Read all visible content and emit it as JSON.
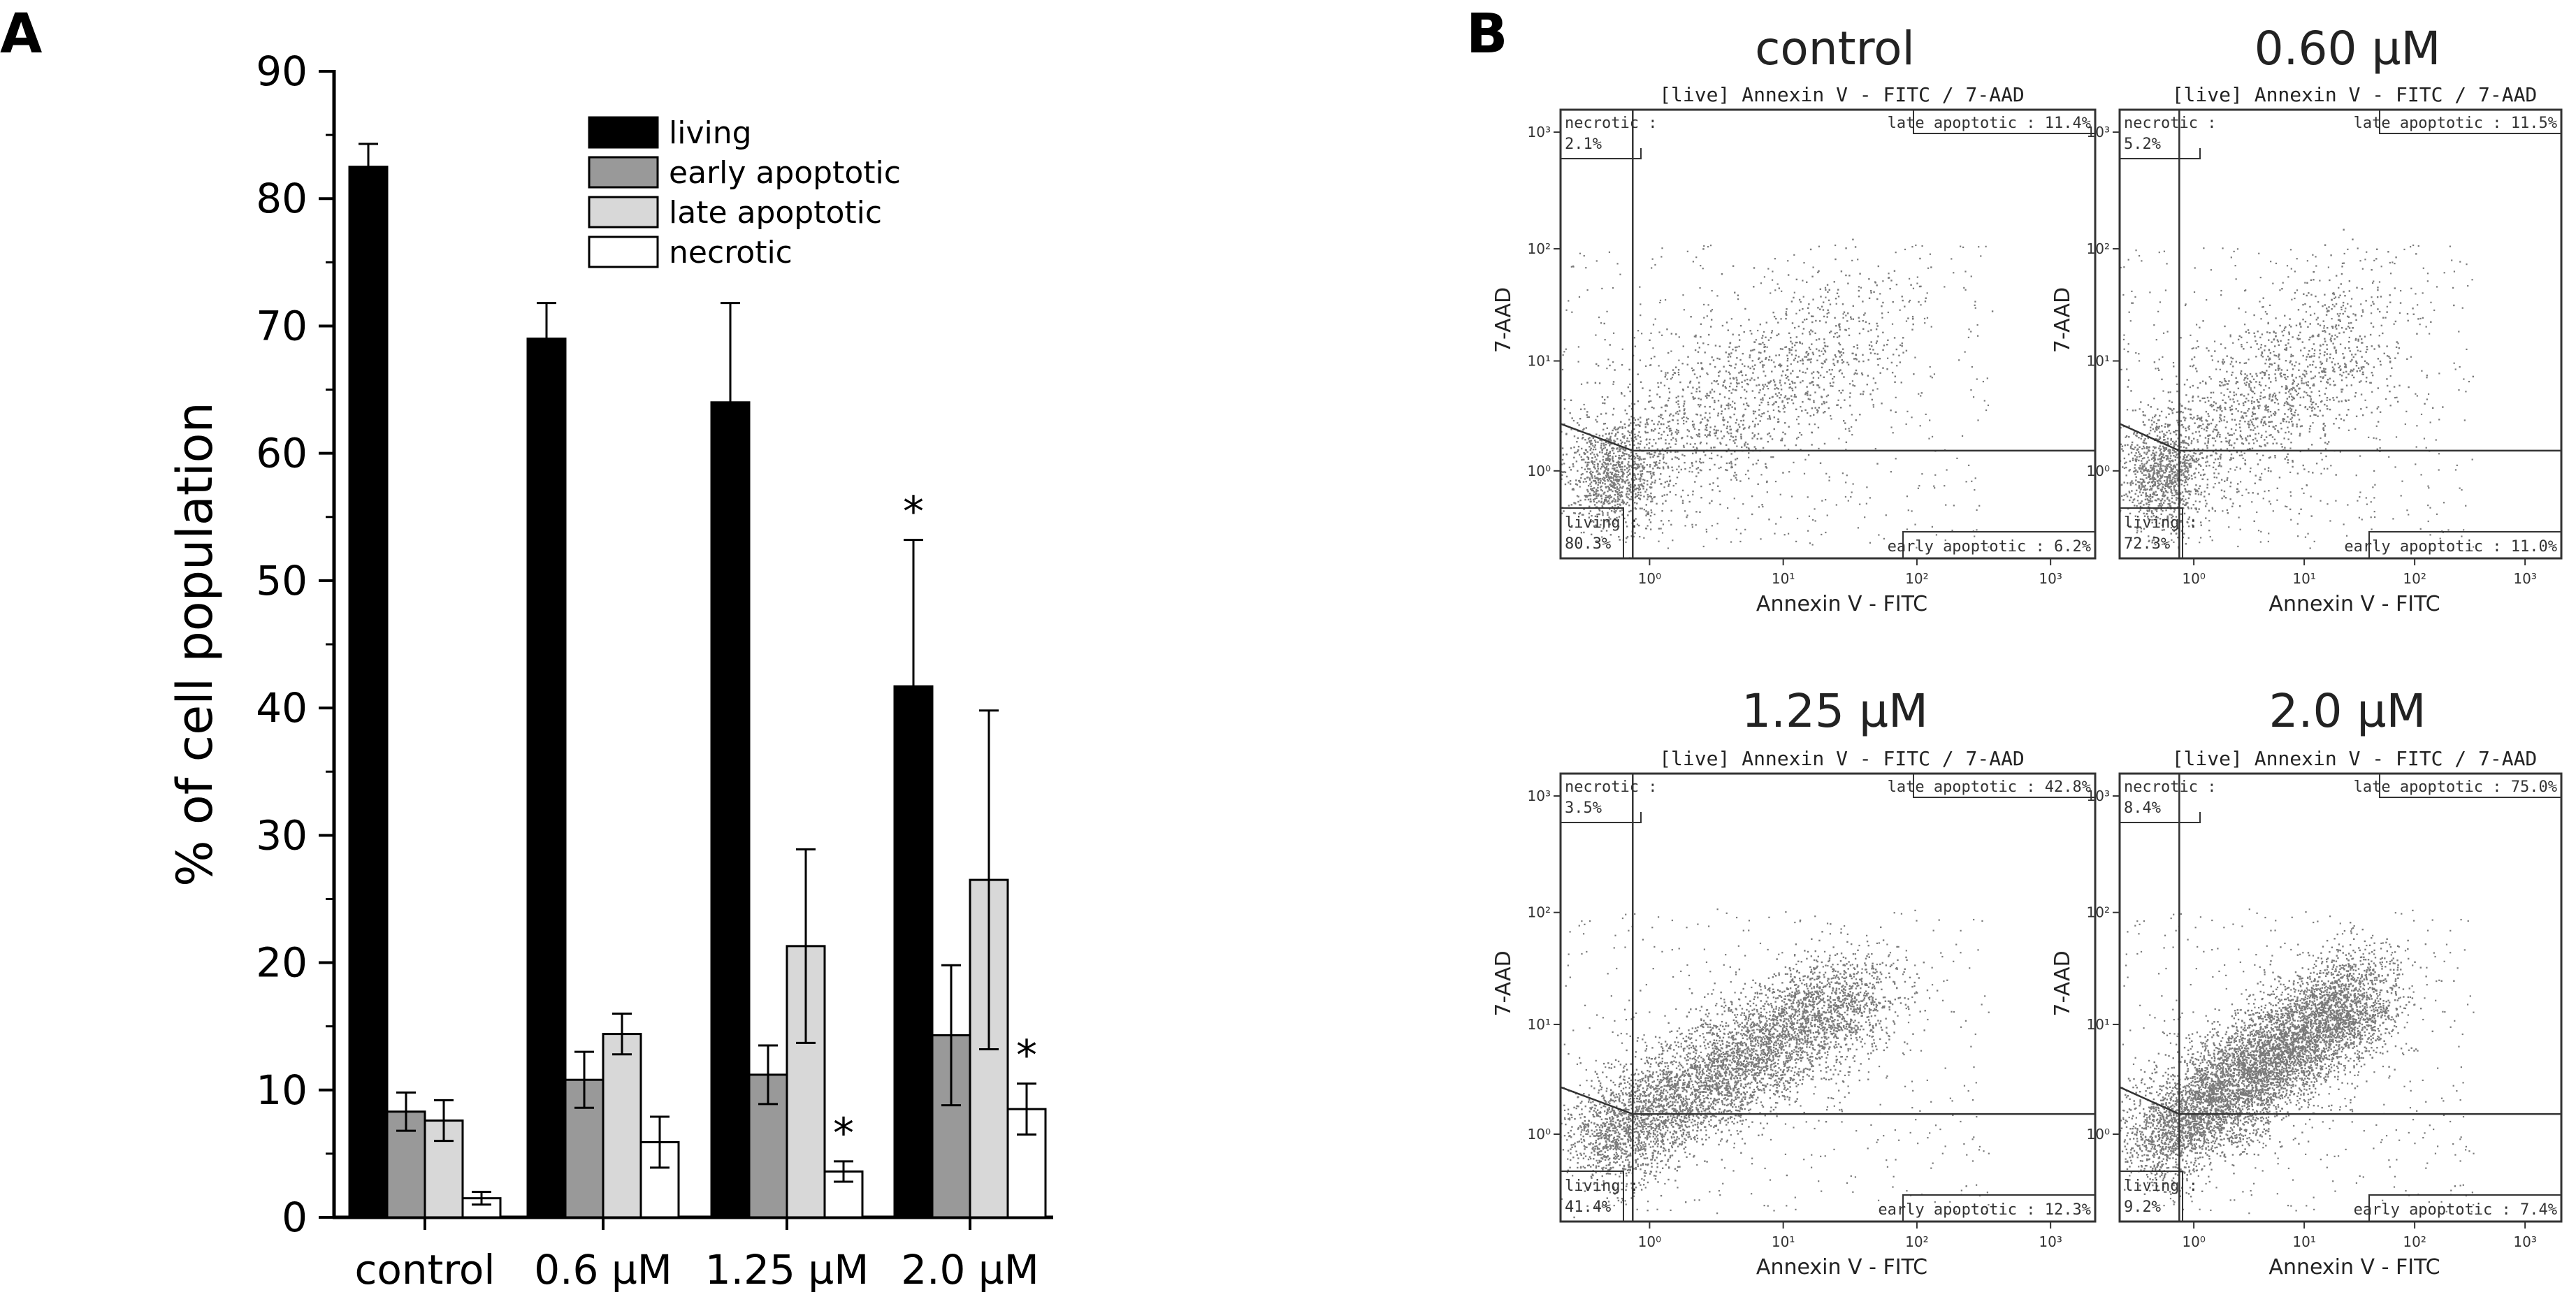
{
  "panel_a_label": "A",
  "panel_b_label": "B",
  "chart_data": [
    {
      "type": "bar",
      "title": "",
      "xlabel": "",
      "ylabel": "% of cell population",
      "ylim": [
        0,
        90
      ],
      "yticks": [
        0,
        10,
        20,
        30,
        40,
        50,
        60,
        70,
        80,
        90
      ],
      "categories": [
        "control",
        "0.6 µM",
        "1.25 µM",
        "2.0 µM"
      ],
      "legend_position": "top-right",
      "series": [
        {
          "name": "living",
          "color": "#000000",
          "values": [
            82.5,
            69.0,
            64.0,
            41.7
          ],
          "errors": [
            1.8,
            2.8,
            7.8,
            11.5
          ],
          "significant": [
            false,
            false,
            false,
            true
          ]
        },
        {
          "name": "early apoptotic",
          "color": "#999999",
          "values": [
            8.3,
            10.8,
            11.2,
            14.3
          ],
          "errors": [
            1.5,
            2.2,
            2.3,
            5.5
          ],
          "significant": [
            false,
            false,
            false,
            false
          ]
        },
        {
          "name": "late apoptotic",
          "color": "#d8d8d8",
          "values": [
            7.6,
            14.4,
            21.3,
            26.5
          ],
          "errors": [
            1.6,
            1.6,
            7.6,
            13.3
          ],
          "significant": [
            false,
            false,
            false,
            false
          ]
        },
        {
          "name": "necrotic",
          "color": "#ffffff",
          "values": [
            1.5,
            5.9,
            3.6,
            8.5
          ],
          "errors": [
            0.5,
            2.0,
            0.8,
            2.0
          ],
          "significant": [
            false,
            false,
            true,
            true
          ]
        }
      ],
      "significance_marker": "*"
    },
    {
      "type": "scatter",
      "panels": [
        {
          "title": "control",
          "plot_title": "[live] Annexin V - FITC / 7-AAD",
          "xlabel": "Annexin V - FITC",
          "ylabel": "7-AAD",
          "quadrants": {
            "necrotic": "necrotic :",
            "necrotic_value": "2.1%",
            "late": "late apoptotic : 11.4%",
            "living": "living :",
            "living_value": "80.3%",
            "early": "early apoptotic : 6.2%"
          },
          "x_ticks": [
            "10⁰",
            "10¹",
            "10²",
            "10³"
          ],
          "y_ticks": [
            "10⁰",
            "10¹",
            "10²",
            "10³"
          ],
          "density": "low"
        },
        {
          "title": "0.60 µM",
          "plot_title": "[live] Annexin V - FITC / 7-AAD",
          "xlabel": "Annexin V - FITC",
          "ylabel": "7-AAD",
          "quadrants": {
            "necrotic": "necrotic :",
            "necrotic_value": "5.2%",
            "late": "late apoptotic : 11.5%",
            "living": "living :",
            "living_value": "72.3%",
            "early": "early apoptotic : 11.0%"
          },
          "x_ticks": [
            "10⁰",
            "10¹",
            "10²",
            "10³"
          ],
          "y_ticks": [
            "10⁰",
            "10¹",
            "10²",
            "10³"
          ],
          "density": "low"
        },
        {
          "title": "1.25 µM",
          "plot_title": "[live] Annexin V - FITC / 7-AAD",
          "xlabel": "Annexin V - FITC",
          "ylabel": "7-AAD",
          "quadrants": {
            "necrotic": "necrotic :",
            "necrotic_value": "3.5%",
            "late": "late apoptotic : 42.8%",
            "living": "living :",
            "living_value": "41.4%",
            "early": "early apoptotic : 12.3%"
          },
          "x_ticks": [
            "10⁰",
            "10¹",
            "10²",
            "10³"
          ],
          "y_ticks": [
            "10⁰",
            "10¹",
            "10²",
            "10³"
          ],
          "density": "high"
        },
        {
          "title": "2.0 µM",
          "plot_title": "[live] Annexin V - FITC / 7-AAD",
          "xlabel": "Annexin V - FITC",
          "ylabel": "7-AAD",
          "quadrants": {
            "necrotic": "necrotic :",
            "necrotic_value": "8.4%",
            "late": "late apoptotic : 75.0%",
            "living": "living :",
            "living_value": "9.2%",
            "early": "early apoptotic : 7.4%"
          },
          "x_ticks": [
            "10⁰",
            "10¹",
            "10²",
            "10³"
          ],
          "y_ticks": [
            "10⁰",
            "10¹",
            "10²",
            "10³"
          ],
          "density": "very-high"
        }
      ]
    }
  ]
}
